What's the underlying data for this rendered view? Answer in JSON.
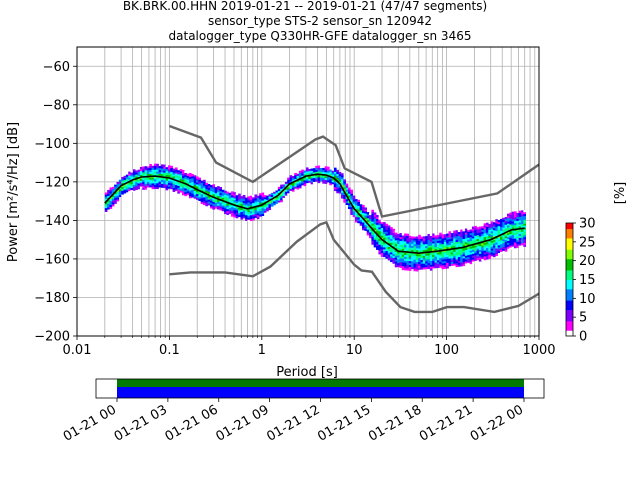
{
  "chart_data": {
    "type": "heatmap",
    "title_lines": [
      "BK.BRK.00.HHN   2019-01-21 -- 2019-01-21  (47/47 segments)",
      "sensor_type STS-2 sensor_sn 120942",
      "datalogger_type Q330HR-GFE datalogger_sn 3465"
    ],
    "xlabel": "Period [s]",
    "ylabel": "Power [m²/s⁴/Hz] [dB]",
    "xscale": "log",
    "xlim": [
      0.01,
      1000
    ],
    "ylim": [
      -200,
      -50
    ],
    "x_ticks": [
      {
        "v": 0.01,
        "label": "0.01"
      },
      {
        "v": 0.1,
        "label": "0.1"
      },
      {
        "v": 1,
        "label": "1"
      },
      {
        "v": 10,
        "label": "10"
      },
      {
        "v": 100,
        "label": "100"
      },
      {
        "v": 1000,
        "label": "1000"
      }
    ],
    "y_ticks": [
      {
        "v": -60,
        "label": "−60"
      },
      {
        "v": -80,
        "label": "−80"
      },
      {
        "v": -100,
        "label": "−100"
      },
      {
        "v": -120,
        "label": "−120"
      },
      {
        "v": -140,
        "label": "−140"
      },
      {
        "v": -160,
        "label": "−160"
      },
      {
        "v": -180,
        "label": "−180"
      },
      {
        "v": -200,
        "label": "−200"
      }
    ],
    "grid": true,
    "colorbar": {
      "label": "[%]",
      "range": [
        0,
        30
      ],
      "ticks": [
        {
          "v": 0,
          "label": "0"
        },
        {
          "v": 5,
          "label": "5"
        },
        {
          "v": 10,
          "label": "10"
        },
        {
          "v": 15,
          "label": "15"
        },
        {
          "v": 20,
          "label": "20"
        },
        {
          "v": 25,
          "label": "25"
        },
        {
          "v": 30,
          "label": "30"
        }
      ],
      "colors": [
        "#ffffff",
        "#ff00ff",
        "#8000ff",
        "#0000ff",
        "#0080ff",
        "#00ffff",
        "#00ff80",
        "#00c000",
        "#80ff00",
        "#ffff00",
        "#ff8000",
        "#ff0000"
      ]
    },
    "noise_model_high": [
      [
        0.1,
        -91
      ],
      [
        0.22,
        -97
      ],
      [
        0.32,
        -110
      ],
      [
        0.8,
        -120
      ],
      [
        3.8,
        -98
      ],
      [
        4.6,
        -96.5
      ],
      [
        6.3,
        -101
      ],
      [
        7.9,
        -113
      ],
      [
        15.4,
        -120
      ],
      [
        20,
        -138
      ],
      [
        354.8,
        -126
      ],
      [
        1000,
        -111
      ]
    ],
    "noise_model_low": [
      [
        0.1,
        -168
      ],
      [
        0.17,
        -167
      ],
      [
        0.4,
        -167
      ],
      [
        0.8,
        -169
      ],
      [
        1.24,
        -164
      ],
      [
        2.4,
        -151
      ],
      [
        4.3,
        -142
      ],
      [
        5,
        -141
      ],
      [
        6,
        -150
      ],
      [
        10,
        -163
      ],
      [
        12,
        -166
      ],
      [
        15.6,
        -166.7
      ],
      [
        21.9,
        -177
      ],
      [
        31.6,
        -185
      ],
      [
        45,
        -187.5
      ],
      [
        70,
        -187.5
      ],
      [
        101,
        -185
      ],
      [
        154,
        -185
      ],
      [
        328,
        -187.5
      ],
      [
        600,
        -184.4
      ],
      [
        1000,
        -178
      ]
    ],
    "mean_curve": [
      [
        0.02,
        -131
      ],
      [
        0.025,
        -126
      ],
      [
        0.03,
        -122
      ],
      [
        0.04,
        -119
      ],
      [
        0.05,
        -117.5
      ],
      [
        0.07,
        -117
      ],
      [
        0.1,
        -118
      ],
      [
        0.15,
        -121
      ],
      [
        0.2,
        -124
      ],
      [
        0.3,
        -128
      ],
      [
        0.5,
        -132
      ],
      [
        0.7,
        -134
      ],
      [
        1,
        -132
      ],
      [
        1.5,
        -127
      ],
      [
        2,
        -121
      ],
      [
        3,
        -117
      ],
      [
        4,
        -116
      ],
      [
        5,
        -116.5
      ],
      [
        6,
        -118
      ],
      [
        7,
        -121
      ],
      [
        8,
        -126
      ],
      [
        10,
        -134
      ],
      [
        13,
        -140
      ],
      [
        16,
        -145
      ],
      [
        20,
        -150
      ],
      [
        30,
        -156
      ],
      [
        50,
        -157
      ],
      [
        80,
        -156
      ],
      [
        150,
        -154
      ],
      [
        300,
        -150
      ],
      [
        500,
        -145
      ],
      [
        700,
        -144
      ]
    ],
    "timeline": {
      "ticks": [
        "01-21 00",
        "01-21 03",
        "01-21 06",
        "01-21 09",
        "01-21 12",
        "01-21 15",
        "01-21 18",
        "01-21 21",
        "01-22 00"
      ],
      "data_color": "#0000ff",
      "gap_color": "#007a00",
      "coverage": [
        0,
        24
      ]
    }
  }
}
